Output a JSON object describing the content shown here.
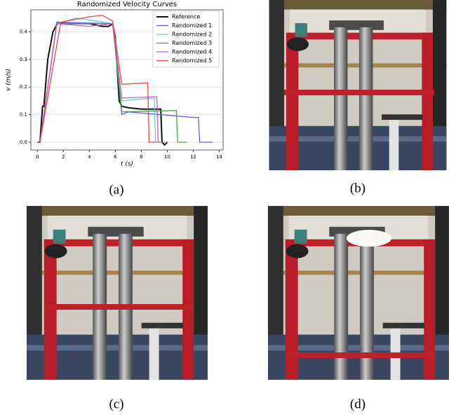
{
  "chart_data": {
    "type": "line",
    "title": "Randomized Velocity Curves",
    "x_label": "t (s)",
    "y_label": "v (m/s)",
    "xlim": [
      -0.5,
      14.3
    ],
    "ylim": [
      -0.028,
      0.48
    ],
    "xticks": [
      0,
      2,
      4,
      6,
      8,
      10,
      12,
      14
    ],
    "yticks": [
      {
        "value": 0,
        "label": "0.0"
      },
      0.1,
      0.2,
      0.3,
      0.4
    ],
    "grid": true,
    "legend": "upper right",
    "series": [
      {
        "name": "Reference",
        "color": "#111111",
        "x": [
          0,
          0.2,
          0.4,
          0.5,
          0.8,
          1.2,
          1.6,
          2,
          3,
          4,
          5,
          5.5,
          5.8,
          6,
          6.3,
          6.5,
          7,
          8,
          9,
          9.5,
          9.6,
          9.8,
          10
        ],
        "values": [
          0,
          0,
          0.13,
          0.13,
          0.3,
          0.4,
          0.435,
          0.43,
          0.43,
          0.43,
          0.42,
          0.42,
          0.43,
          0.38,
          0.15,
          0.13,
          0.125,
          0.12,
          0.12,
          0.12,
          0,
          -0.01,
          0
        ]
      },
      {
        "name": "Randomized 1",
        "color": "#6060e8",
        "x": [
          0,
          0.2,
          1.5,
          5.8,
          6.5,
          7,
          12,
          12.4,
          12.5,
          13.5
        ],
        "values": [
          0,
          0,
          0.435,
          0.43,
          0.1,
          0.11,
          0.09,
          0.09,
          0,
          0
        ]
      },
      {
        "name": "Randomized 2",
        "color": "#5fd0d0",
        "x": [
          0,
          0.2,
          1.5,
          3,
          5.8,
          6.5,
          9,
          9.1,
          9.5
        ],
        "values": [
          0,
          0,
          0.43,
          0.45,
          0.43,
          0.15,
          0.16,
          0,
          0
        ]
      },
      {
        "name": "Randomized 3",
        "color": "#3fa83f",
        "x": [
          0,
          0.2,
          1.5,
          5.8,
          6.5,
          10.7,
          10.8,
          11.5
        ],
        "values": [
          0,
          0,
          0.43,
          0.43,
          0.11,
          0.115,
          0,
          0
        ]
      },
      {
        "name": "Randomized 4",
        "color": "#cc55cc",
        "x": [
          0,
          0.2,
          1.5,
          4,
          5.8,
          6.5,
          9.2,
          9.3,
          9.8
        ],
        "values": [
          0,
          0,
          0.43,
          0.42,
          0.43,
          0.16,
          0.165,
          0,
          0
        ]
      },
      {
        "name": "Randomized 5",
        "color": "#ee4444",
        "x": [
          0,
          0.2,
          1.8,
          4,
          5,
          5.8,
          6.5,
          8.5,
          8.6,
          9.2
        ],
        "values": [
          0,
          0,
          0.435,
          0.455,
          0.46,
          0.44,
          0.21,
          0.215,
          0,
          0
        ]
      }
    ]
  },
  "captions": [
    "(a)",
    "(b)",
    "(c)",
    "(d)"
  ]
}
